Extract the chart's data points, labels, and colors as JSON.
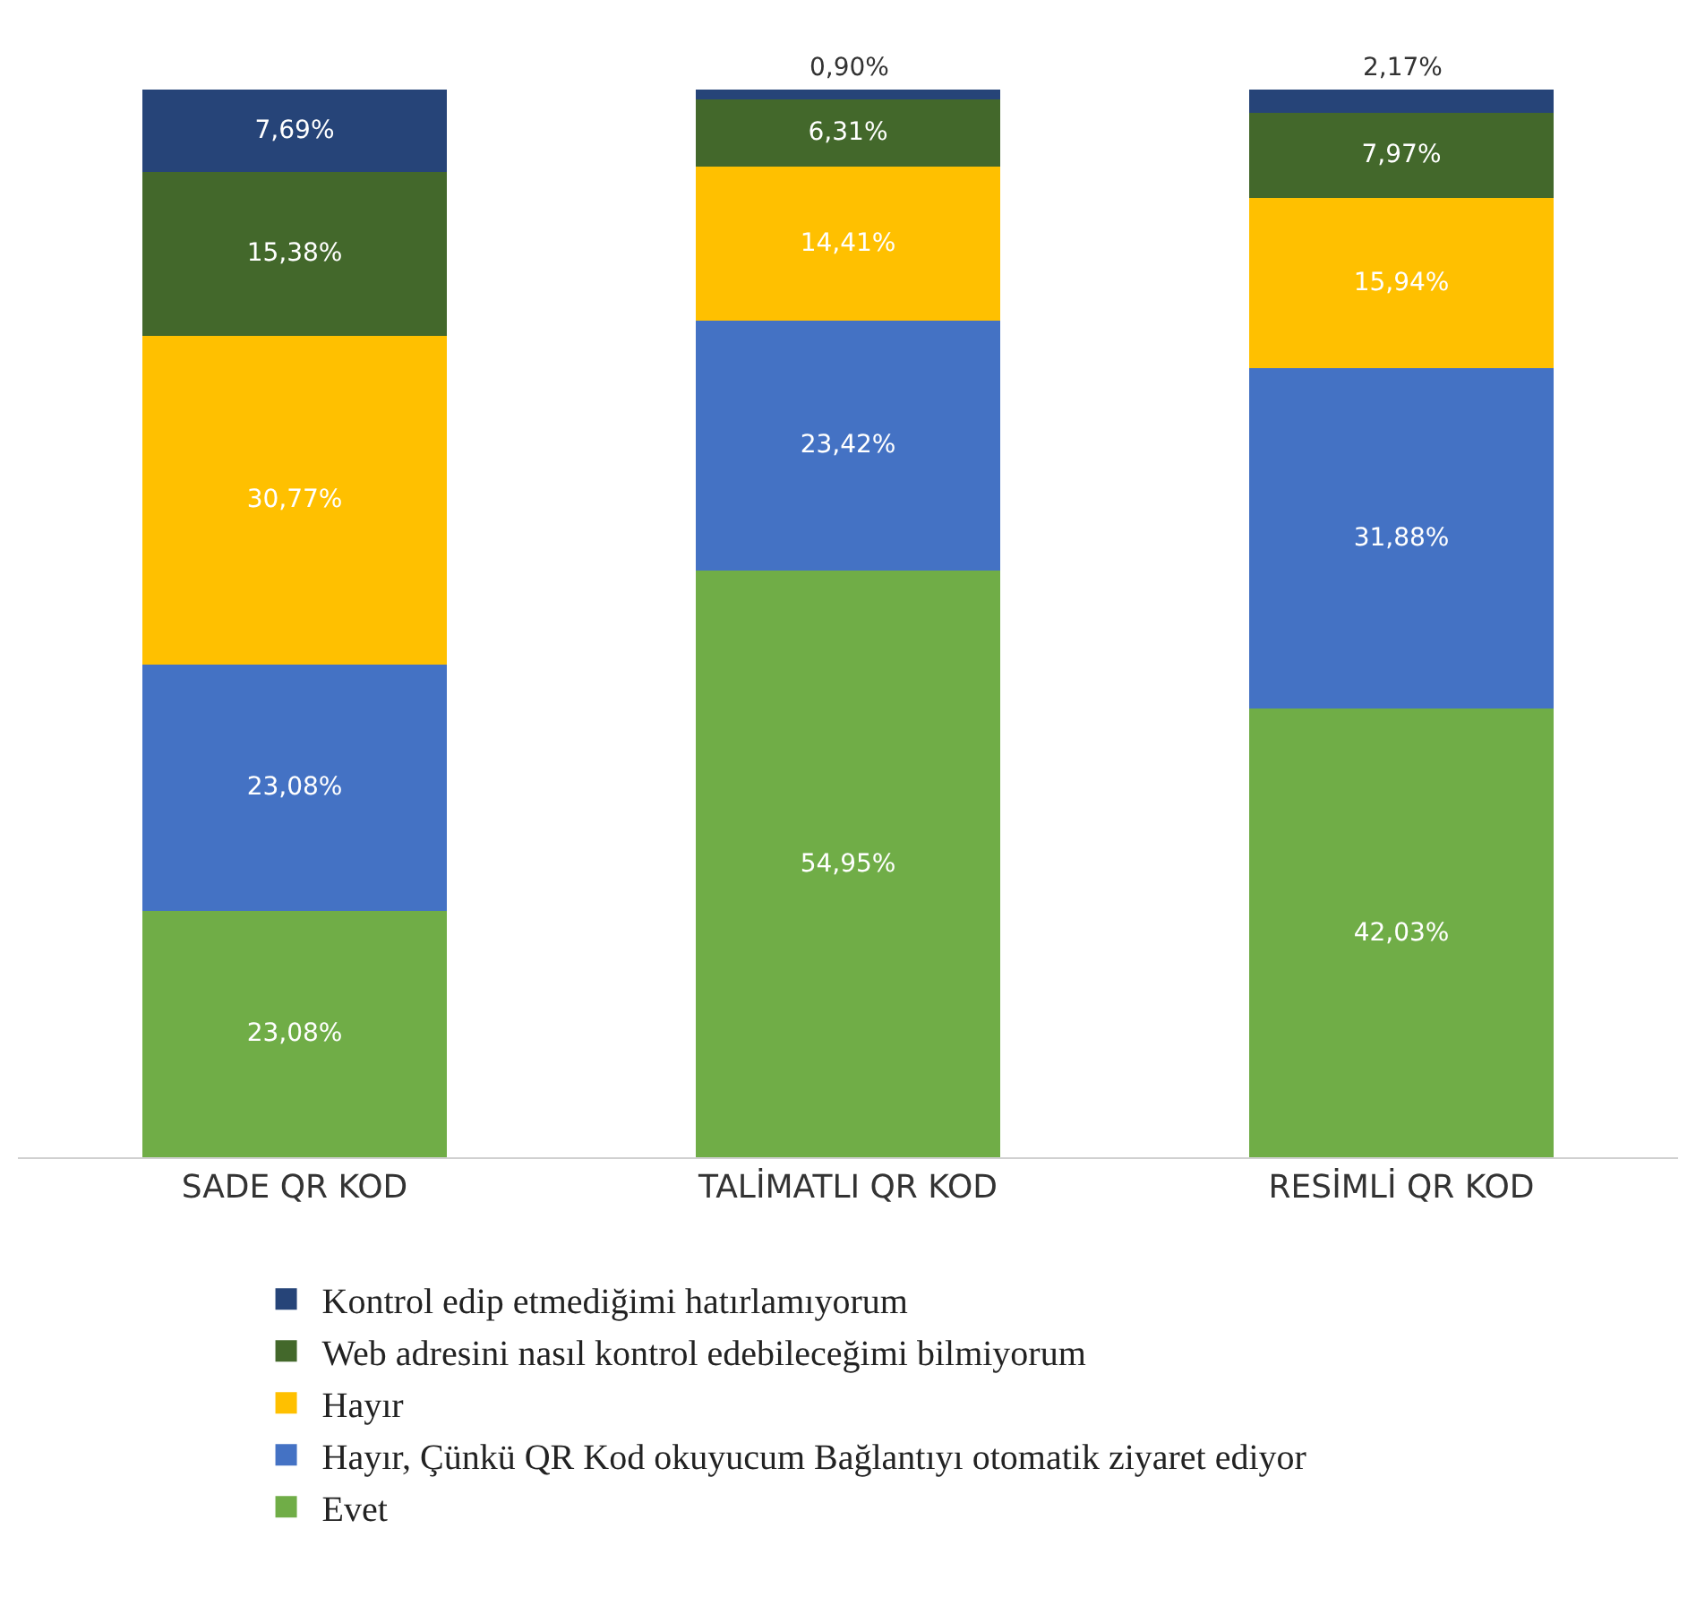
{
  "chart_data": {
    "type": "bar",
    "stacked": true,
    "categories": [
      "SADE QR KOD",
      "TALİMATLI QR KOD",
      "RESİMLİ QR KOD"
    ],
    "ylim": [
      0,
      100
    ],
    "tick_labels": "x",
    "legend": "bottom",
    "series": [
      {
        "name": "Evet",
        "color": "#70ad47",
        "values": [
          23.08,
          54.95,
          42.03
        ],
        "value_labels": [
          "23,08%",
          "54,95%",
          "42,03%"
        ]
      },
      {
        "name": "Hayır, Çünkü QR Kod okuyucum Bağlantıyı otomatik ziyaret ediyor",
        "color": "#4472c4",
        "values": [
          23.08,
          23.42,
          31.88
        ],
        "value_labels": [
          "23,08%",
          "23,42%",
          "31,88%"
        ]
      },
      {
        "name": "Hayır",
        "color": "#ffc000",
        "values": [
          30.77,
          14.41,
          15.94
        ],
        "value_labels": [
          "30,77%",
          "14,41%",
          "15,94%"
        ]
      },
      {
        "name": "Web adresini nasıl kontrol edebileceğimi bilmiyorum",
        "color": "#43682b",
        "values": [
          15.38,
          6.31,
          7.97
        ],
        "value_labels": [
          "15,38%",
          "6,31%",
          "7,97%"
        ]
      },
      {
        "name": "Kontrol edip etmediğimi hatırlamıyorum",
        "color": "#264478",
        "values": [
          7.69,
          0.9,
          2.17
        ],
        "value_labels": [
          "7,69%",
          "0,90%",
          "2,17%"
        ]
      }
    ]
  }
}
